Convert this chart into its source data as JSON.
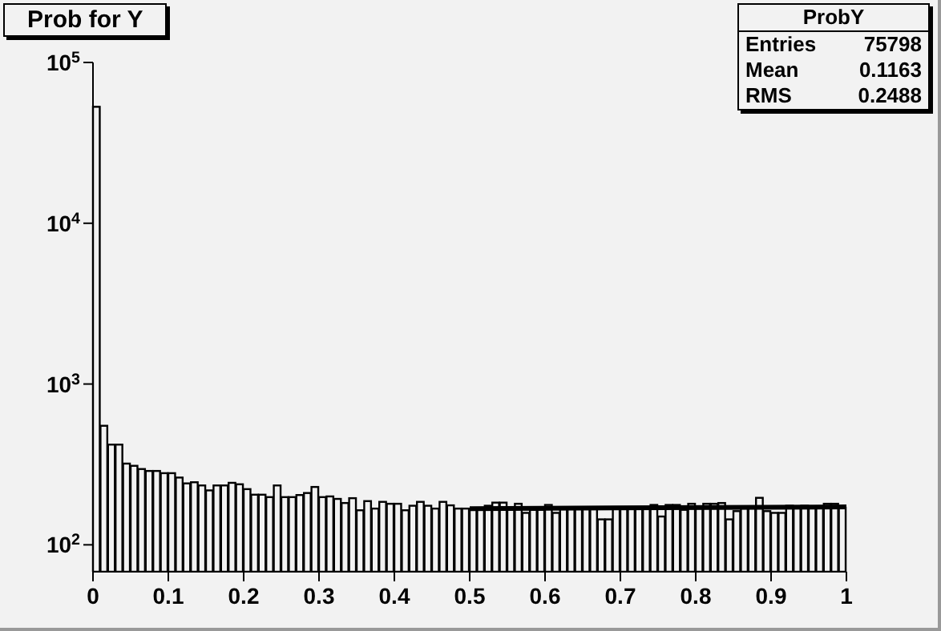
{
  "chart_data": {
    "type": "histogram",
    "title": "Prob for Y",
    "bins": [
      0,
      0.01,
      0.02,
      0.03,
      0.04,
      0.05,
      0.06,
      0.07,
      0.08,
      0.09,
      0.1,
      0.11,
      0.12,
      0.13,
      0.14,
      0.15,
      0.16,
      0.17,
      0.18,
      0.19,
      0.2,
      0.21,
      0.22,
      0.23,
      0.24,
      0.25,
      0.26,
      0.27,
      0.28,
      0.29,
      0.3,
      0.31,
      0.32,
      0.33,
      0.34,
      0.35,
      0.36,
      0.37,
      0.38,
      0.39,
      0.4,
      0.41,
      0.42,
      0.43,
      0.44,
      0.45,
      0.46,
      0.47,
      0.48,
      0.49,
      0.5,
      0.51,
      0.52,
      0.53,
      0.54,
      0.55,
      0.56,
      0.57,
      0.58,
      0.59,
      0.6,
      0.61,
      0.62,
      0.63,
      0.64,
      0.65,
      0.66,
      0.67,
      0.68,
      0.69,
      0.7,
      0.71,
      0.72,
      0.73,
      0.74,
      0.75,
      0.76,
      0.77,
      0.78,
      0.79,
      0.8,
      0.81,
      0.82,
      0.83,
      0.84,
      0.85,
      0.86,
      0.87,
      0.88,
      0.89,
      0.9,
      0.91,
      0.92,
      0.93,
      0.94,
      0.95,
      0.96,
      0.97,
      0.98,
      0.99,
      1
    ],
    "values": [
      53000,
      550,
      420,
      420,
      320,
      310,
      296,
      288,
      288,
      279,
      279,
      262,
      241,
      245,
      234,
      218,
      234,
      234,
      243,
      238,
      222,
      205,
      205,
      198,
      234,
      198,
      198,
      204,
      210,
      229,
      198,
      200,
      193,
      182,
      195,
      164,
      187,
      168,
      185,
      180,
      180,
      164,
      175,
      185,
      175,
      168,
      185,
      176,
      168,
      168,
      167,
      167,
      175,
      183,
      183,
      165,
      180,
      158,
      165,
      165,
      177,
      158,
      170,
      170,
      167,
      167,
      170,
      144,
      144,
      170,
      170,
      170,
      170,
      170,
      177,
      150,
      177,
      177,
      165,
      180,
      170,
      180,
      180,
      182,
      144,
      162,
      170,
      170,
      196,
      162,
      158,
      158,
      175,
      170,
      175,
      170,
      170,
      180,
      180,
      170
    ],
    "color": "#000000",
    "series": [
      {
        "type": "line",
        "x": [
          0.5,
          1
        ],
        "values": [
          168,
          172
        ],
        "color": "#000000"
      }
    ],
    "log": "y",
    "xlim": [
      0,
      1
    ],
    "xticks": [
      0,
      0.1,
      0.2,
      0.3,
      0.4,
      0.5,
      0.6,
      0.7,
      0.8,
      0.9,
      1
    ],
    "ylim": [
      68,
      100000
    ],
    "yticks": [
      {
        "value": 100,
        "label": "10$^{2}$"
      },
      {
        "value": 1000,
        "label": "10$^{3}$"
      },
      {
        "value": 10000,
        "label": "10$^{4}$"
      },
      {
        "value": 100000,
        "label": "10$^{5}$"
      }
    ],
    "annotations": [
      "ProbY",
      "Entries",
      "75798",
      "Mean",
      "0.1163",
      "RMS",
      "0.2488"
    ]
  }
}
